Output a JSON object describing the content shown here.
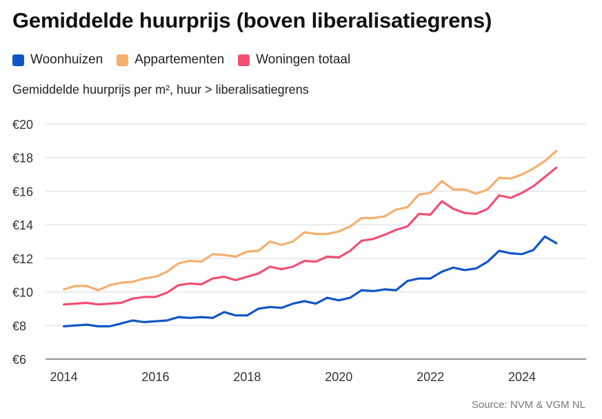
{
  "title": "Gemiddelde huurprijs (boven liberalisatiegrens)",
  "subtitle": "Gemiddelde huurprijs per m², huur > liberalisatiegrens",
  "source": "Source:  NVM & VGM NL",
  "colors": {
    "woonhuizen": "#1055c8",
    "appartementen": "#f5ae6e",
    "totaal": "#f34d73",
    "grid": "#d9d9d9",
    "axis": "#555555"
  },
  "chart_data": {
    "type": "line",
    "xlabel": "",
    "ylabel": "",
    "ylim": [
      6,
      20
    ],
    "xlim": [
      2013.6,
      2025.4
    ],
    "grid": true,
    "legend_position": "top-left",
    "y_ticks": [
      6,
      8,
      10,
      12,
      14,
      16,
      18,
      20
    ],
    "y_tick_labels": [
      "€6",
      "€8",
      "€10",
      "€12",
      "€14",
      "€16",
      "€18",
      "€20"
    ],
    "x_ticks": [
      2014,
      2016,
      2018,
      2020,
      2022,
      2024
    ],
    "x_tick_labels": [
      "2014",
      "2016",
      "2018",
      "2020",
      "2022",
      "2024"
    ],
    "x": [
      2014.0,
      2014.25,
      2014.5,
      2014.75,
      2015.0,
      2015.25,
      2015.5,
      2015.75,
      2016.0,
      2016.25,
      2016.5,
      2016.75,
      2017.0,
      2017.25,
      2017.5,
      2017.75,
      2018.0,
      2018.25,
      2018.5,
      2018.75,
      2019.0,
      2019.25,
      2019.5,
      2019.75,
      2020.0,
      2020.25,
      2020.5,
      2020.75,
      2021.0,
      2021.25,
      2021.5,
      2021.75,
      2022.0,
      2022.25,
      2022.5,
      2022.75,
      2023.0,
      2023.25,
      2023.5,
      2023.75,
      2024.0,
      2024.25,
      2024.5,
      2024.75
    ],
    "series": [
      {
        "name": "Woonhuizen",
        "color": "#1055c8",
        "values": [
          7.95,
          8.0,
          8.05,
          7.95,
          7.95,
          8.12,
          8.3,
          8.2,
          8.25,
          8.3,
          8.5,
          8.45,
          8.5,
          8.45,
          8.8,
          8.6,
          8.6,
          9.0,
          9.1,
          9.05,
          9.3,
          9.45,
          9.3,
          9.65,
          9.5,
          9.65,
          10.1,
          10.05,
          10.15,
          10.1,
          10.65,
          10.8,
          10.8,
          11.2,
          11.45,
          11.3,
          11.4,
          11.8,
          12.45,
          12.3,
          12.25,
          12.5,
          13.3,
          12.9
        ]
      },
      {
        "name": "Appartementen",
        "color": "#f5ae6e",
        "values": [
          10.15,
          10.35,
          10.35,
          10.1,
          10.4,
          10.55,
          10.6,
          10.8,
          10.9,
          11.2,
          11.7,
          11.85,
          11.8,
          12.25,
          12.2,
          12.1,
          12.4,
          12.45,
          13.0,
          12.8,
          13.0,
          13.55,
          13.45,
          13.45,
          13.6,
          13.9,
          14.4,
          14.4,
          14.5,
          14.9,
          15.05,
          15.8,
          15.9,
          16.6,
          16.1,
          16.1,
          15.85,
          16.1,
          16.8,
          16.75,
          17.0,
          17.35,
          17.8,
          18.4
        ]
      },
      {
        "name": "Woningen totaal",
        "color": "#f34d73",
        "values": [
          9.25,
          9.3,
          9.35,
          9.25,
          9.3,
          9.35,
          9.6,
          9.7,
          9.7,
          9.95,
          10.4,
          10.5,
          10.45,
          10.8,
          10.9,
          10.7,
          10.9,
          11.1,
          11.5,
          11.35,
          11.5,
          11.85,
          11.8,
          12.1,
          12.05,
          12.45,
          13.05,
          13.15,
          13.4,
          13.7,
          13.9,
          14.65,
          14.6,
          15.4,
          14.95,
          14.7,
          14.65,
          14.95,
          15.75,
          15.6,
          15.9,
          16.3,
          16.85,
          17.4
        ]
      }
    ]
  }
}
